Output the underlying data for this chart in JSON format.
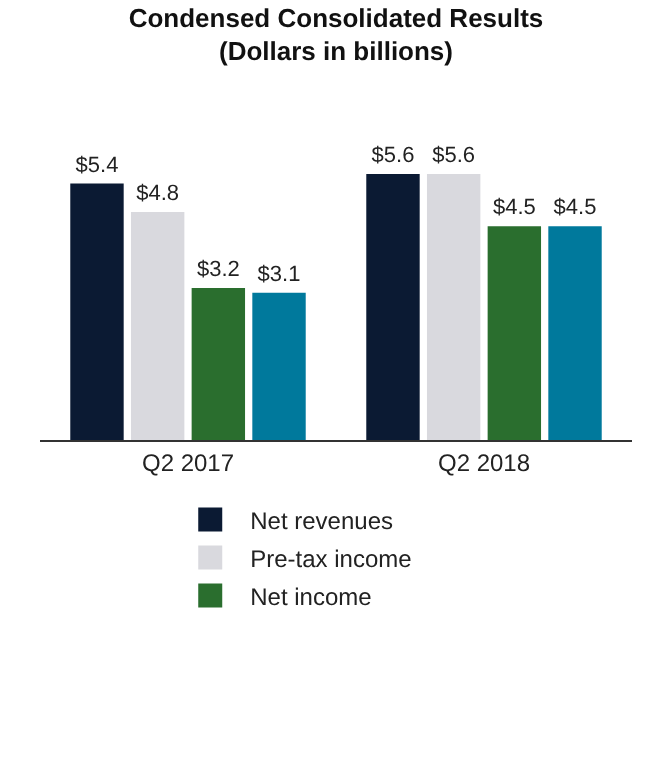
{
  "chart_data": {
    "type": "bar",
    "title": "Condensed Consolidated Results\n(Dollars in billions)",
    "categories": [
      "Q2 2017",
      "Q2 2018"
    ],
    "series": [
      {
        "name": "Net revenues",
        "color": "#0b1a33",
        "values": [
          5.4,
          5.6
        ],
        "value_labels": [
          "$5.4",
          "$5.6"
        ]
      },
      {
        "name": "Pre-tax income",
        "color": "#d9d9de",
        "values": [
          4.8,
          5.6
        ],
        "value_labels": [
          "$4.8",
          "$5.6"
        ]
      },
      {
        "name": "Net income",
        "color": "#2a6e2e",
        "values": [
          3.2,
          4.5
        ],
        "value_labels": [
          "$3.2",
          "$4.5"
        ]
      },
      {
        "color": "#00799c",
        "values": [
          3.1,
          4.5
        ],
        "value_labels": [
          "$3.1",
          "$4.5"
        ]
      }
    ],
    "legend": "bottom"
  }
}
